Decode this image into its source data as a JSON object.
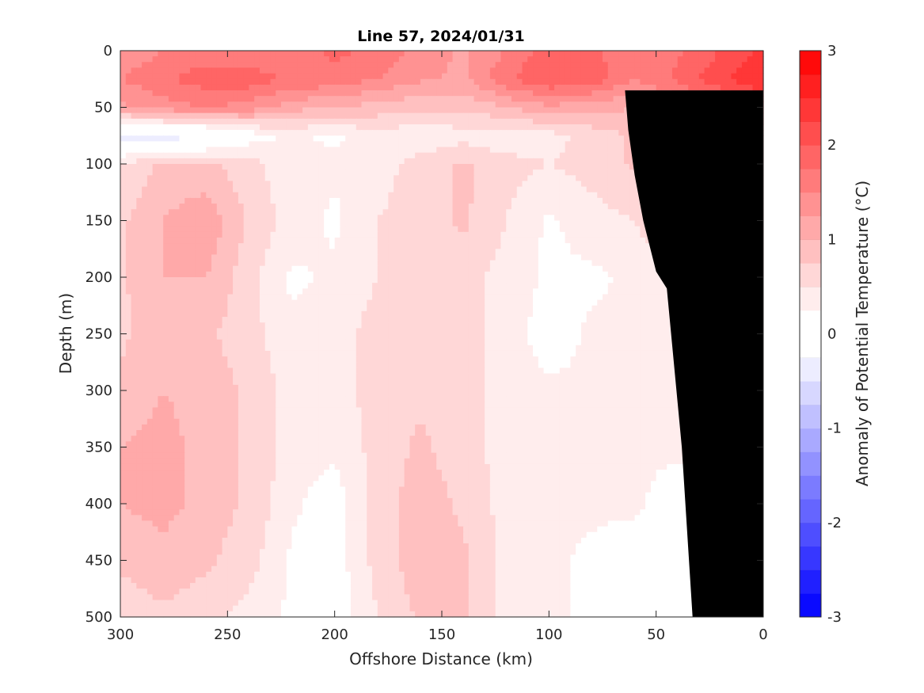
{
  "chart_data": {
    "type": "heatmap",
    "subtype": "filled-contour section",
    "title": "Line 57, 2024/01/31",
    "xlabel": "Offshore Distance (km)",
    "ylabel": "Depth (m)",
    "colorbar_label": "Anomaly of Potential Temperature (°C)",
    "xlim": [
      300,
      0
    ],
    "ylim": [
      0,
      500
    ],
    "x_reversed": true,
    "y_reversed": true,
    "x_ticks": [
      "300",
      "250",
      "200",
      "150",
      "100",
      "50",
      "0"
    ],
    "y_ticks": [
      "0",
      "50",
      "100",
      "150",
      "200",
      "250",
      "300",
      "350",
      "400",
      "450",
      "500"
    ],
    "clim": [
      -3,
      3
    ],
    "contour_step": 0.25,
    "colorbar_ticks": [
      "3",
      "2",
      "1",
      "0",
      "-1",
      "-2",
      "-3"
    ],
    "zero_contour": "black line",
    "bathymetry": "black fill",
    "colors": {
      "levels": [
        "#0a0aff",
        "#2020ff",
        "#3737ff",
        "#4e4eff",
        "#6565ff",
        "#7b7bff",
        "#9292ff",
        "#a9a9ff",
        "#c0c0ff",
        "#d7d7ff",
        "#ededff",
        "#ffffff",
        "#ffffff",
        "#ffeded",
        "#ffd7d7",
        "#ffc0c0",
        "#ffa9a9",
        "#ff9292",
        "#ff7b7b",
        "#ff6565",
        "#ff4e4e",
        "#ff3737",
        "#ff2020",
        "#ff0a0a"
      ],
      "land": "#000000",
      "axis": "#262626"
    },
    "grid": false,
    "x": [
      300,
      280,
      260,
      240,
      220,
      200,
      180,
      160,
      140,
      120,
      100,
      80,
      60,
      40,
      20,
      0
    ],
    "y": [
      0,
      25,
      50,
      75,
      100,
      150,
      200,
      250,
      300,
      350,
      400,
      450,
      500
    ],
    "z": [
      [
        1.3,
        1.5,
        1.6,
        1.5,
        1.6,
        1.8,
        1.7,
        1.4,
        1.2,
        1.5,
        1.9,
        1.8,
        1.6,
        1.7,
        2.0,
        2.3
      ],
      [
        1.5,
        1.7,
        1.9,
        1.9,
        1.7,
        1.7,
        1.5,
        1.3,
        1.2,
        1.7,
        2.0,
        1.9,
        1.5,
        1.8,
        2.2,
        2.5
      ],
      [
        1.2,
        1.4,
        1.5,
        1.4,
        1.1,
        1.0,
        0.9,
        0.8,
        0.8,
        1.0,
        1.2,
        1.1,
        1.0,
        1.3,
        1.6,
        2.0
      ],
      [
        -0.4,
        -0.4,
        -0.3,
        0.1,
        0.3,
        0.2,
        0.4,
        0.3,
        0.4,
        0.3,
        0.4,
        0.6,
        0.8,
        0.9,
        1.0,
        1.2
      ],
      [
        0.5,
        0.8,
        0.8,
        0.6,
        0.3,
        0.3,
        0.4,
        0.6,
        0.8,
        0.6,
        0.5,
        0.6,
        0.8,
        0.9,
        0.9,
        1.0
      ],
      [
        0.7,
        1.0,
        1.2,
        0.7,
        0.4,
        0.2,
        0.5,
        0.6,
        0.8,
        0.5,
        0.2,
        0.4,
        0.5,
        0.8,
        0.8,
        0.8
      ],
      [
        0.7,
        1.0,
        1.0,
        0.6,
        0.2,
        0.3,
        0.5,
        0.7,
        0.6,
        0.4,
        0.2,
        0.2,
        0.3,
        0.5,
        0.5,
        0.5
      ],
      [
        0.7,
        0.9,
        0.8,
        0.6,
        0.3,
        0.4,
        0.6,
        0.7,
        0.6,
        0.4,
        0.1,
        0.3,
        0.3,
        0.4,
        0.4,
        0.4
      ],
      [
        0.8,
        1.0,
        0.9,
        0.7,
        0.4,
        0.4,
        0.6,
        0.7,
        0.6,
        0.4,
        0.3,
        0.3,
        0.3,
        0.4,
        0.4,
        0.4
      ],
      [
        1.0,
        1.1,
        0.9,
        0.7,
        0.4,
        0.3,
        0.6,
        0.8,
        0.6,
        0.4,
        0.3,
        0.3,
        0.3,
        0.3,
        0.3,
        0.3
      ],
      [
        1.0,
        1.1,
        0.9,
        0.7,
        0.3,
        0.1,
        0.6,
        0.9,
        0.7,
        0.4,
        0.3,
        0.3,
        0.3,
        0.1,
        0.1,
        0.1
      ],
      [
        0.8,
        0.9,
        0.8,
        0.6,
        0.2,
        0.1,
        0.6,
        0.9,
        0.8,
        0.4,
        0.3,
        0.2,
        0.1,
        -0.1,
        -0.1,
        -0.1
      ],
      [
        0.6,
        0.7,
        0.6,
        0.4,
        0.2,
        0.1,
        0.5,
        0.8,
        0.8,
        0.4,
        0.3,
        0.2,
        0.1,
        0.0,
        0.0,
        0.0
      ]
    ],
    "bathymetry_profile": {
      "distance_km": [
        33,
        38,
        45,
        50,
        56,
        60,
        63,
        64.5
      ],
      "depth_m": [
        500,
        350,
        210,
        195,
        150,
        110,
        70,
        35
      ]
    }
  }
}
